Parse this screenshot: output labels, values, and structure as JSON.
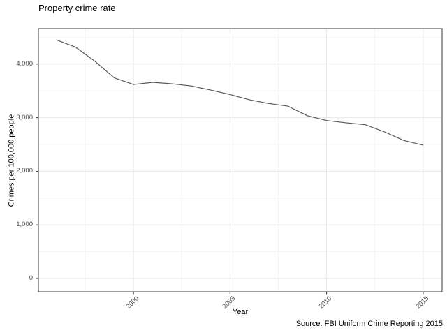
{
  "title": "Property crime rate",
  "caption": "Source: FBI Uniform Crime Reporting 2015",
  "axes": {
    "x": {
      "label": "Year",
      "tick_labels": [
        "2000",
        "2005",
        "2010",
        "2015"
      ]
    },
    "y": {
      "label": "Crimes per 100,000 people",
      "tick_labels": [
        "0",
        "1,000",
        "2,000",
        "3,000",
        "4,000"
      ]
    }
  },
  "colors": {
    "background": "#ffffff",
    "panel_background": "#ffffff",
    "panel_border": "#3a3a3a",
    "grid_major": "#e8e8e8",
    "grid_minor": "#f4f4f4",
    "axis_tick": "#333333",
    "tick_label_text": "#4d4d4d",
    "line": "#555555",
    "text": "#000000"
  },
  "chart_data": {
    "type": "line",
    "title": "Property crime rate",
    "xlabel": "Year",
    "ylabel": "Crimes per 100,000 people",
    "x": [
      1996,
      1997,
      1998,
      1999,
      2000,
      2001,
      2002,
      2003,
      2004,
      2005,
      2006,
      2007,
      2008,
      2009,
      2010,
      2011,
      2012,
      2013,
      2014,
      2015
    ],
    "series": [
      {
        "name": "Property crime rate",
        "values": [
          4451,
          4316,
          4053,
          3744,
          3618,
          3658,
          3631,
          3591,
          3514,
          3432,
          3335,
          3264,
          3215,
          3036,
          2946,
          2905,
          2868,
          2734,
          2574,
          2487
        ]
      }
    ],
    "xlim": [
      1995.08,
      2015.98
    ],
    "ylim": [
      -247,
      4661
    ],
    "x_major_ticks": [
      2000,
      2005,
      2010,
      2015
    ],
    "x_minor_ticks": [
      1997.5,
      2002.5,
      2007.5,
      2012.5
    ],
    "y_major_ticks": [
      0,
      1000,
      2000,
      3000,
      4000
    ],
    "y_minor_ticks": [
      500,
      1500,
      2500,
      3500,
      4500
    ],
    "grid": true,
    "legend": false
  }
}
